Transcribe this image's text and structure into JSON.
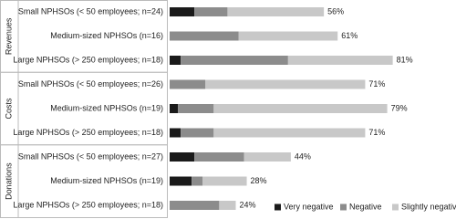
{
  "chart_data": {
    "type": "stacked-bar-horizontal",
    "groups": [
      "Revenues",
      "Costs",
      "Donations"
    ],
    "categories": [
      "Small NPHSOs (< 50 employees; n=24)",
      "Medium-sized NPHSOs (n=16)",
      "Large NPHSOs (> 250 employees; n=18)",
      "Small NPHSOs (< 50 employees; n=26)",
      "Medium-sized NPHSOs (n=19)",
      "Large NPHSOs (> 250 employees; n=18)",
      "Small NPHSOs (< 50 employees; n=27)",
      "Medium-sized NPHSOs (n=19)",
      "Large NPHSOs (> 250 employees; n=18)"
    ],
    "series": [
      {
        "name": "Very negative",
        "color": "#1a1a1a",
        "values": [
          9,
          0,
          4,
          0,
          3,
          4,
          9,
          8,
          0
        ]
      },
      {
        "name": "Negative",
        "color": "#8c8c8c",
        "values": [
          12,
          25,
          39,
          13,
          13,
          12,
          18,
          4,
          18
        ]
      },
      {
        "name": "Slightly negative",
        "color": "#c8c8c8",
        "values": [
          35,
          36,
          38,
          58,
          63,
          55,
          17,
          16,
          6
        ]
      }
    ],
    "totals": [
      56,
      61,
      81,
      71,
      79,
      71,
      44,
      28,
      24
    ],
    "total_labels": [
      "56%",
      "61%",
      "81%",
      "71%",
      "79%",
      "71%",
      "44%",
      "28%",
      "24%"
    ],
    "legend": "bottom-right"
  }
}
